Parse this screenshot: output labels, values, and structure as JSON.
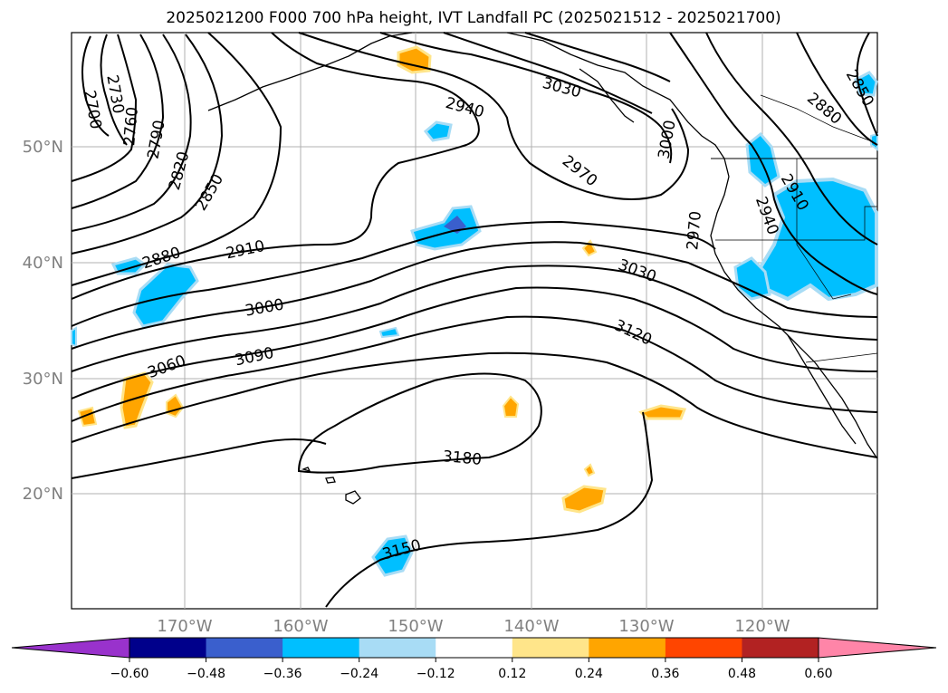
{
  "title": "2025021200 F000 700 hPa height, IVT Landfall PC (2025021512 - 2025021700)",
  "map": {
    "lat_labels": [
      "50°N",
      "40°N",
      "30°N",
      "20°N"
    ],
    "lon_labels": [
      "170°W",
      "160°W",
      "150°W",
      "140°W",
      "130°W",
      "120°W"
    ],
    "contour_labels": [
      "2700",
      "2730",
      "2760",
      "2790",
      "2820",
      "2850",
      "2880",
      "2910",
      "2940",
      "2970",
      "3000",
      "3030",
      "3060",
      "3090",
      "3120",
      "3150",
      "3180",
      "3030",
      "2970",
      "2940",
      "2910",
      "2880",
      "2850",
      "3000",
      "2970"
    ],
    "contour_interval_hpa": "700 hPa height",
    "fill_colors": {
      "neg_strong": "#3a5fcd",
      "neg_mid": "#00bfff",
      "neg_weak": "#a8dcf5",
      "pos_weak": "#ffe58a",
      "pos_mid": "#ffa500",
      "pos_strong": "#ff4500"
    }
  },
  "colorbar": {
    "ticks": [
      "−0.60",
      "−0.48",
      "−0.36",
      "−0.24",
      "−0.12",
      "0.12",
      "0.24",
      "0.36",
      "0.48",
      "0.60"
    ],
    "colors": [
      "#9932cc",
      "#00008b",
      "#3a5fcd",
      "#00bfff",
      "#a8dcf5",
      "#ffffff",
      "#ffe58a",
      "#ffa500",
      "#ff4500",
      "#b22222",
      "#ff85a8"
    ]
  }
}
